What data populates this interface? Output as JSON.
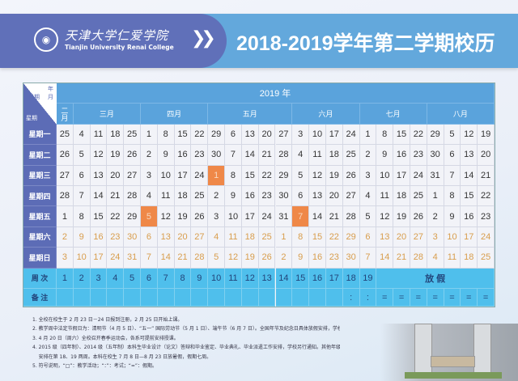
{
  "header": {
    "college_cn": "天津大学仁爱学院",
    "college_en": "Tianjin University Renai College",
    "title": "2018-2019学年第二学期校历"
  },
  "corner": {
    "month": "年月",
    "date": "日期",
    "weekday": "星期"
  },
  "year": "2019 年",
  "months": [
    {
      "label": "二月",
      "span": 1
    },
    {
      "label": "三月",
      "span": 4
    },
    {
      "label": "四月",
      "span": 4
    },
    {
      "label": "五月",
      "span": 5
    },
    {
      "label": "六月",
      "span": 4
    },
    {
      "label": "七月",
      "span": 4
    },
    {
      "label": "八月",
      "span": 4
    }
  ],
  "weekdays": [
    "星期一",
    "星期二",
    "星期三",
    "星期四",
    "星期五",
    "星期六",
    "星期日"
  ],
  "days": [
    [
      25,
      4,
      11,
      18,
      25,
      1,
      8,
      15,
      22,
      29,
      6,
      13,
      20,
      27,
      3,
      10,
      17,
      24,
      1,
      8,
      15,
      22,
      29,
      5,
      12,
      19
    ],
    [
      26,
      5,
      12,
      19,
      26,
      2,
      9,
      16,
      23,
      30,
      7,
      14,
      21,
      28,
      4,
      11,
      18,
      25,
      2,
      9,
      16,
      23,
      30,
      6,
      13,
      20
    ],
    [
      27,
      6,
      13,
      20,
      27,
      3,
      10,
      17,
      24,
      1,
      8,
      15,
      22,
      29,
      5,
      12,
      19,
      26,
      3,
      10,
      17,
      24,
      31,
      7,
      14,
      21
    ],
    [
      28,
      7,
      14,
      21,
      28,
      4,
      11,
      18,
      25,
      2,
      9,
      16,
      23,
      30,
      6,
      13,
      20,
      27,
      4,
      11,
      18,
      25,
      1,
      8,
      15,
      22
    ],
    [
      1,
      8,
      15,
      22,
      29,
      5,
      12,
      19,
      26,
      3,
      10,
      17,
      24,
      31,
      7,
      14,
      21,
      28,
      5,
      12,
      19,
      26,
      2,
      9,
      16,
      23
    ],
    [
      2,
      9,
      16,
      23,
      30,
      6,
      13,
      20,
      27,
      4,
      11,
      18,
      25,
      1,
      8,
      15,
      22,
      29,
      6,
      13,
      20,
      27,
      3,
      10,
      17,
      24
    ],
    [
      3,
      10,
      17,
      24,
      31,
      7,
      14,
      21,
      28,
      5,
      12,
      19,
      26,
      2,
      9,
      16,
      23,
      30,
      7,
      14,
      21,
      28,
      4,
      11,
      18,
      25
    ]
  ],
  "holidays": [
    {
      "row": 2,
      "col": 9
    },
    {
      "row": 4,
      "col": 5
    },
    {
      "row": 4,
      "col": 14
    }
  ],
  "colors": {
    "holiday": "#ef8848",
    "weekend_text": "#d89d4c",
    "header": "#5aa3dc",
    "row_label": "#5c6cb6",
    "week_row": "#4fbfec"
  },
  "week_row": {
    "label": "周 次",
    "weeks": [
      "1",
      "2",
      "3",
      "4",
      "5",
      "6",
      "7",
      "8",
      "9",
      "10",
      "11",
      "12",
      "13",
      "14",
      "15",
      "16",
      "17",
      "18",
      "19"
    ],
    "vacation": "放 假"
  },
  "remarks_row": {
    "label": "备 注",
    "marks": [
      "",
      "",
      "",
      "",
      "",
      "",
      "",
      "",
      "",
      "",
      "",
      "",
      "",
      "",
      "",
      "",
      "",
      ":",
      ":",
      "=",
      "=",
      "=",
      "=",
      "=",
      "=",
      "="
    ]
  },
  "notes": [
    "1. 全校在校生于 2 月 23 日－24 日报到注册，2 月 25 日开始上课。",
    "2. 教学周中法定节假日为：清明节（4 月 5 日）、“五一” 国际劳动节（5 月 1 日）、端午节（6 月 7 日）。全国年节及纪念日具体放假安排，学校另行通知。",
    "3. 4 月 20 日（周六）全校召开春季运动会，各系可提前安排授课。",
    "4. 2015 级（四年制）、2014 级（五年制）本科生毕业设计（论文）答辩和毕业鉴定、毕业典礼、毕业派遣工作安排，学校另行通知。其他年级期末考试",
    "    安排在第 18、19 两周。本科在校生 7 月 8 日—8 月 23 日放暑假，假期七周。",
    "5. 符号说明，“□”：教学活动；“：”：考试；“=”：假期。"
  ]
}
